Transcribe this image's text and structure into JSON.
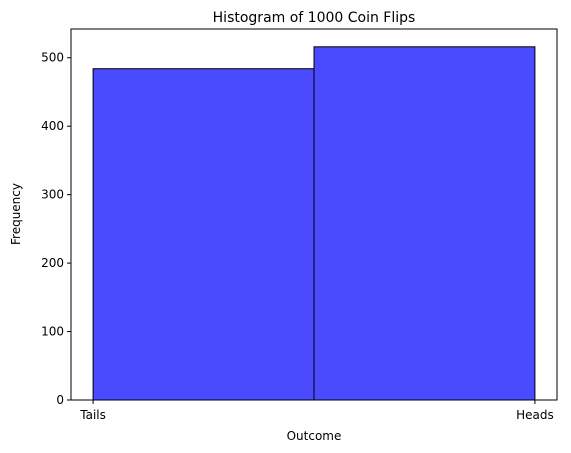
{
  "chart_data": {
    "type": "bar",
    "title": "Histogram of 1000 Coin Flips",
    "xlabel": "Outcome",
    "ylabel": "Frequency",
    "x_tick_labels": [
      "Tails",
      "Heads"
    ],
    "bins": [
      {
        "start": 0,
        "end": 0.5,
        "value": 484
      },
      {
        "start": 0.5,
        "end": 1,
        "value": 516
      }
    ],
    "xlim": [
      -0.05,
      1.05
    ],
    "ylim": [
      0,
      542
    ],
    "y_ticks": [
      0,
      100,
      200,
      300,
      400,
      500
    ],
    "bar_color": "#4a4aff",
    "edge_color": "#000000",
    "grid": false,
    "legend": "none"
  }
}
